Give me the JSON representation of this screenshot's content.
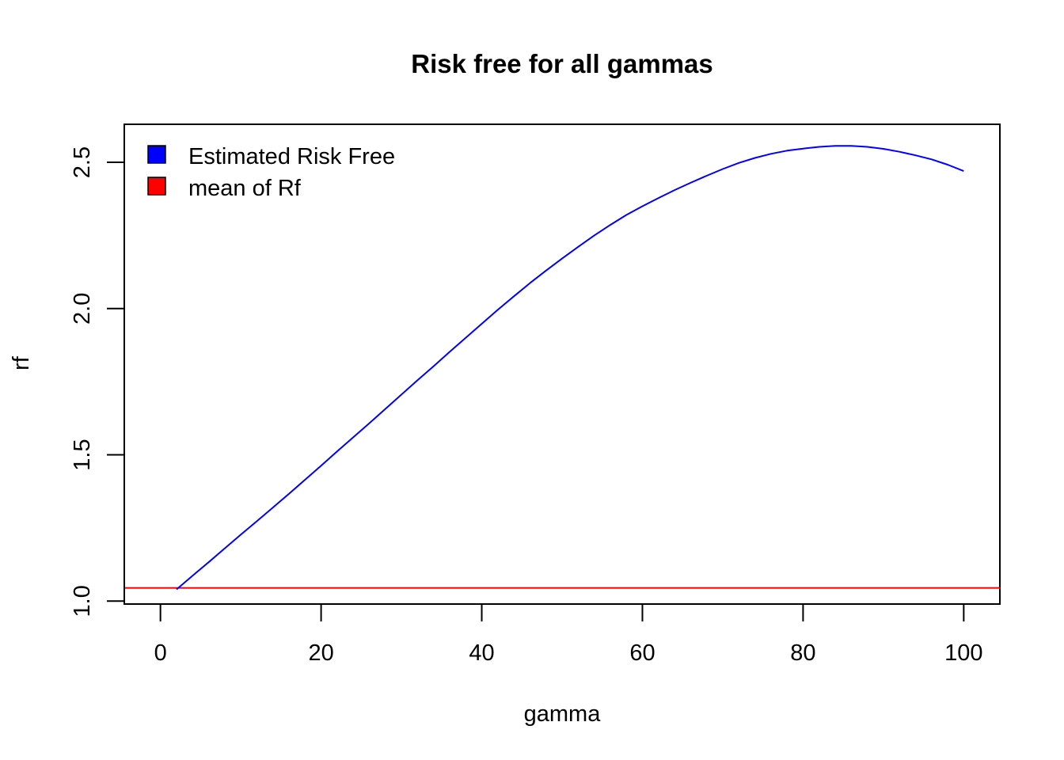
{
  "chart_data": {
    "type": "line",
    "title": "Risk free for all gammas",
    "xlabel": "gamma",
    "ylabel": "rf",
    "xlim": [
      -4.5,
      104.5
    ],
    "ylim": [
      0.99,
      2.63
    ],
    "x_ticks": [
      0,
      20,
      40,
      60,
      80,
      100
    ],
    "y_ticks": [
      1.0,
      1.5,
      2.0,
      2.5
    ],
    "x_tick_labels": [
      "0",
      "20",
      "40",
      "60",
      "80",
      "100"
    ],
    "y_tick_labels": [
      "1.0",
      "1.5",
      "2.0",
      "2.5"
    ],
    "grid": false,
    "legend_position": "top-left",
    "series": [
      {
        "name": "Estimated Risk Free",
        "color": "#0000ff",
        "x": [
          2,
          4,
          6,
          8,
          10,
          12,
          14,
          16,
          18,
          20,
          22,
          24,
          26,
          28,
          30,
          32,
          34,
          36,
          38,
          40,
          42,
          44,
          46,
          48,
          50,
          52,
          54,
          56,
          58,
          60,
          62,
          64,
          66,
          68,
          70,
          72,
          74,
          76,
          78,
          80,
          82,
          84,
          86,
          88,
          90,
          92,
          94,
          96,
          98,
          100
        ],
        "y": [
          1.04,
          1.087,
          1.133,
          1.18,
          1.227,
          1.273,
          1.32,
          1.367,
          1.415,
          1.463,
          1.512,
          1.56,
          1.608,
          1.657,
          1.706,
          1.755,
          1.803,
          1.852,
          1.9,
          1.948,
          1.996,
          2.042,
          2.087,
          2.13,
          2.171,
          2.211,
          2.25,
          2.286,
          2.32,
          2.35,
          2.378,
          2.405,
          2.43,
          2.454,
          2.477,
          2.498,
          2.515,
          2.529,
          2.54,
          2.547,
          2.553,
          2.556,
          2.556,
          2.553,
          2.546,
          2.536,
          2.524,
          2.51,
          2.492,
          2.47
        ]
      }
    ],
    "reference_line": {
      "name": "mean of Rf",
      "color": "#ff0000",
      "y": 1.045
    }
  }
}
